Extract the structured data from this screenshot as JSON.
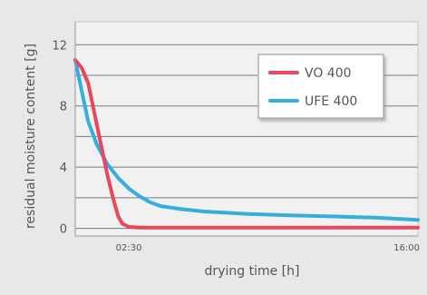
{
  "chart_data": {
    "type": "line",
    "xlabel": "drying time [h]",
    "ylabel": "residual moisture content [g]",
    "x_tick_labels": [
      "02:30",
      "16:00"
    ],
    "x_ticks": [
      2.5,
      16.0
    ],
    "xlim": [
      0,
      16
    ],
    "ylim": [
      -0.5,
      13.5
    ],
    "y_ticks": [
      0,
      4,
      8,
      12
    ],
    "y_tick_labels": [
      "0",
      "4",
      "8",
      "12"
    ],
    "grid": true,
    "legend_position": "top-right",
    "series": [
      {
        "name": "VO 400",
        "color": "#e8475e",
        "points": [
          [
            0,
            11.0
          ],
          [
            0.3,
            10.5
          ],
          [
            0.6,
            9.5
          ],
          [
            0.9,
            7.5
          ],
          [
            1.2,
            5.5
          ],
          [
            1.5,
            3.5
          ],
          [
            1.8,
            1.8
          ],
          [
            2.0,
            0.8
          ],
          [
            2.2,
            0.3
          ],
          [
            2.5,
            0.1
          ],
          [
            3,
            0.05
          ],
          [
            5,
            0.05
          ],
          [
            8,
            0.05
          ],
          [
            12,
            0.05
          ],
          [
            16,
            0.05
          ]
        ]
      },
      {
        "name": "UFE 400",
        "color": "#35aede",
        "points": [
          [
            0,
            11.0
          ],
          [
            0.3,
            9.0
          ],
          [
            0.6,
            7.0
          ],
          [
            1.0,
            5.5
          ],
          [
            1.5,
            4.2
          ],
          [
            2.0,
            3.3
          ],
          [
            2.5,
            2.6
          ],
          [
            3.0,
            2.1
          ],
          [
            3.5,
            1.7
          ],
          [
            4.0,
            1.45
          ],
          [
            5,
            1.25
          ],
          [
            6,
            1.1
          ],
          [
            8,
            0.95
          ],
          [
            10,
            0.85
          ],
          [
            12,
            0.78
          ],
          [
            14,
            0.7
          ],
          [
            16,
            0.55
          ]
        ]
      }
    ]
  }
}
